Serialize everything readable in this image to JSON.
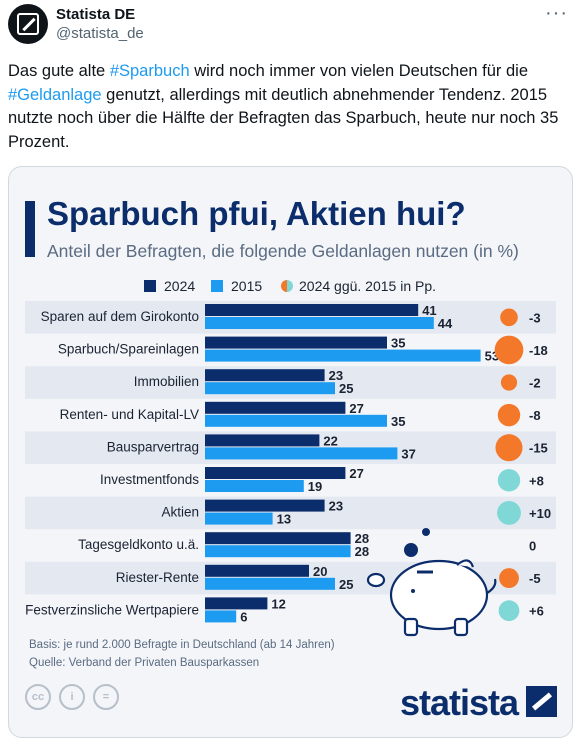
{
  "account": {
    "display_name": "Statista DE",
    "handle": "@statista_de"
  },
  "tweet": {
    "t1": "Das gute alte ",
    "hashtag1": "#Sparbuch",
    "t2": " wird noch immer von vielen Deutschen für die ",
    "hashtag2": "#Geldanlage",
    "t3": " genutzt, allerdings mit deutlich abnehmender Tendenz. 2015 nutzte noch über die Hälfte der Befragten das Sparbuch, heute nur noch 35 Prozent."
  },
  "more_label": "···",
  "infographic": {
    "title": "Sparbuch pfui, Aktien hui?",
    "subtitle": "Anteil der Befragten, die folgende Geldanlagen nutzen (in %)",
    "legend": {
      "s2024": "2024",
      "s2015": "2015",
      "change": "2024 ggü. 2015 in Pp."
    },
    "basis": "Basis: je rund 2.000 Befragte in Deutschland (ab 14 Jahren)",
    "source": "Quelle: Verband der Privaten Bausparkassen",
    "license_icons": [
      "creative-commons-icon",
      "attribution-icon",
      "no-derivatives-icon"
    ],
    "cc_glyphs": {
      "cc": "cc",
      "by": "i",
      "nd": "="
    },
    "brand": "statista"
  },
  "colors": {
    "s2024": "#0c2d6b",
    "s2015": "#1d9bf0",
    "negative": "#f4782a",
    "positive": "#7fd8d6",
    "stripe": "#e4e9f1"
  },
  "chart_data": {
    "type": "bar",
    "orientation": "horizontal",
    "categories": [
      "Sparen auf dem Girokonto",
      "Sparbuch/Spareinlagen",
      "Immobilien",
      "Renten- und Kapital-LV",
      "Bausparvertrag",
      "Investmentfonds",
      "Aktien",
      "Tagesgeldkonto u.ä.",
      "Riester-Rente",
      "Festverzinsliche Wertpapiere"
    ],
    "series": [
      {
        "name": "2024",
        "values": [
          41,
          35,
          23,
          27,
          22,
          27,
          23,
          28,
          20,
          12
        ]
      },
      {
        "name": "2015",
        "values": [
          44,
          53,
          25,
          35,
          37,
          19,
          13,
          28,
          25,
          6
        ]
      }
    ],
    "change": {
      "name": "2024 ggü. 2015 in Pp.",
      "labels": [
        "-3",
        "-18",
        "-2",
        "-8",
        "-15",
        "+8",
        "+10",
        "0",
        "-5",
        "+6"
      ]
    }
  }
}
